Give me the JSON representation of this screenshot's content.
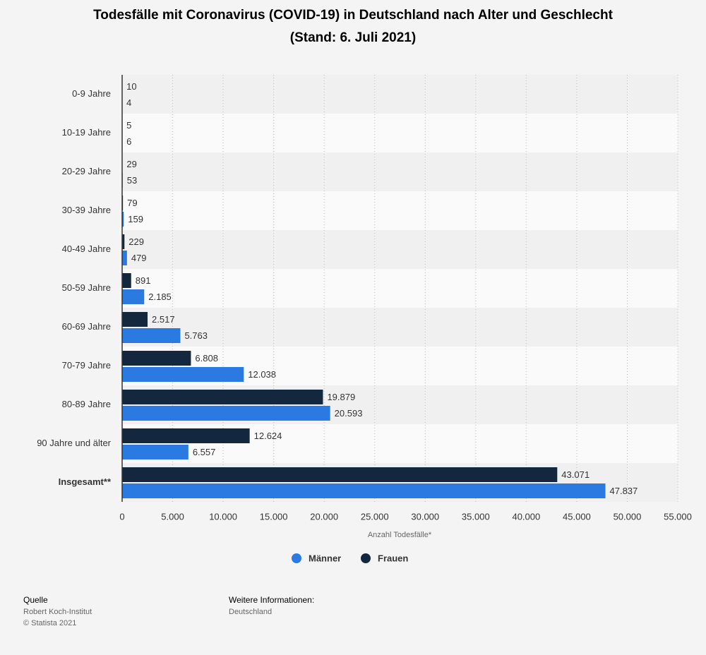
{
  "chart_data": {
    "type": "barh",
    "title": "Todesfälle mit Coronavirus (COVID-19) in Deutschland nach Alter und Geschlecht",
    "subtitle": "(Stand: 6. Juli 2021)",
    "xlabel": "Anzahl Todesfälle*",
    "categories": [
      "0-9 Jahre",
      "10-19 Jahre",
      "20-29 Jahre",
      "30-39 Jahre",
      "40-49 Jahre",
      "50-59 Jahre",
      "60-69 Jahre",
      "70-79 Jahre",
      "80-89 Jahre",
      "90 Jahre und älter",
      "Insgesamt**"
    ],
    "series": [
      {
        "name": "Männer",
        "color": "#2a7ae2",
        "values": [
          4,
          6,
          53,
          159,
          479,
          2185,
          5763,
          12038,
          20593,
          6557,
          47837
        ],
        "value_labels": [
          "4",
          "6",
          "53",
          "159",
          "479",
          "2.185",
          "5.763",
          "12.038",
          "20.593",
          "6.557",
          "47.837"
        ]
      },
      {
        "name": "Frauen",
        "color": "#13273f",
        "values": [
          10,
          5,
          29,
          79,
          229,
          891,
          2517,
          6808,
          19879,
          12624,
          43071
        ],
        "value_labels": [
          "10",
          "5",
          "29",
          "79",
          "229",
          "891",
          "2.517",
          "6.808",
          "19.879",
          "12.624",
          "43.071"
        ]
      }
    ],
    "xlim": [
      0,
      55000
    ],
    "xticks": [
      0,
      {
        "value": 5000,
        "label": "5.000"
      },
      {
        "value": 10000,
        "label": "10.000"
      },
      {
        "value": 15000,
        "label": "15.000"
      },
      {
        "value": 20000,
        "label": "20.000"
      },
      {
        "value": 25000,
        "label": "25.000"
      },
      {
        "value": 30000,
        "label": "30.000"
      },
      {
        "value": 35000,
        "label": "35.000"
      },
      {
        "value": 40000,
        "label": "40.000"
      },
      {
        "value": 45000,
        "label": "45.000"
      },
      {
        "value": 50000,
        "label": "50.000"
      },
      {
        "value": 55000,
        "label": "55.000"
      }
    ],
    "grid": true,
    "legend": "bottom"
  },
  "source": {
    "heading": "Quelle",
    "lines": [
      "Robert Koch-Institut",
      "© Statista 2021"
    ],
    "info_heading": "Weitere Informationen:",
    "info": "Deutschland"
  }
}
